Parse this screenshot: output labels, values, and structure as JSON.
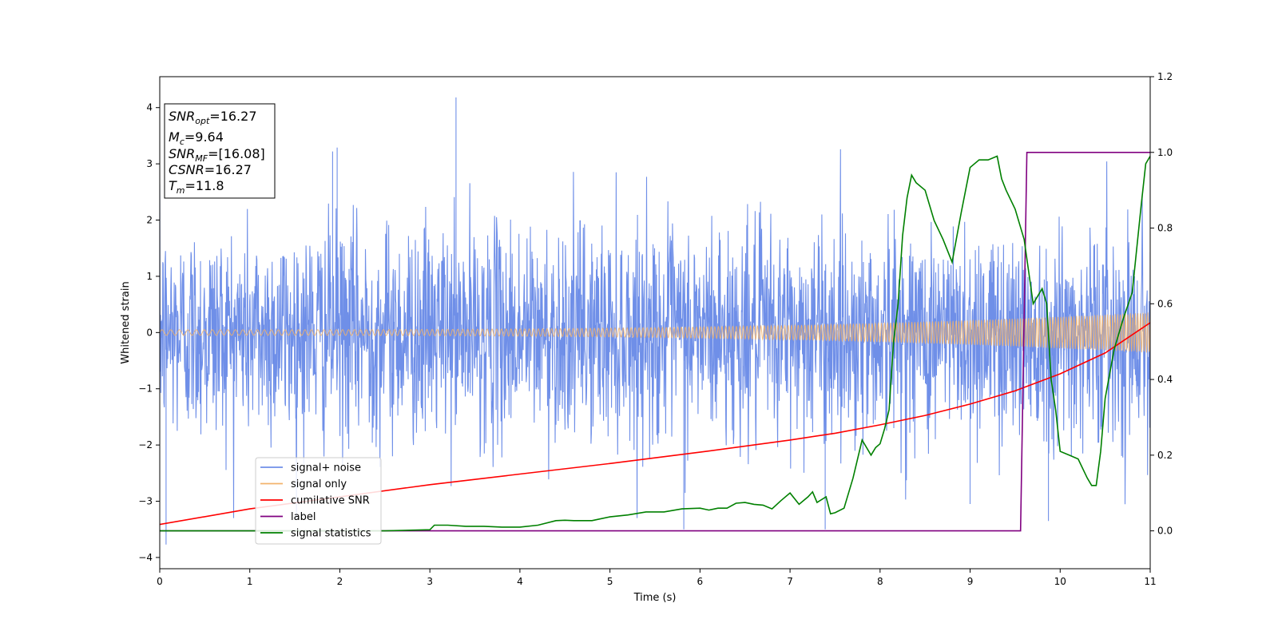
{
  "chart_data": {
    "type": "line",
    "xlabel": "Time (s)",
    "ylabel": "Whitened strain",
    "xlim": [
      0,
      11
    ],
    "ylim": [
      -4.2,
      4.55
    ],
    "y2lim": [
      -0.1,
      1.2
    ],
    "x_ticks": [
      0,
      1,
      2,
      3,
      4,
      5,
      6,
      7,
      8,
      9,
      10,
      11
    ],
    "x_tick_labels": [
      "0",
      "1",
      "2",
      "3",
      "4",
      "5",
      "6",
      "7",
      "8",
      "9",
      "10",
      "11"
    ],
    "y_ticks": [
      -4,
      -3,
      -2,
      -1,
      0,
      1,
      2,
      3,
      4
    ],
    "y_tick_labels": [
      "−4",
      "−3",
      "−2",
      "−1",
      "0",
      "1",
      "2",
      "3",
      "4"
    ],
    "y2_ticks": [
      0.0,
      0.2,
      0.4,
      0.6,
      0.8,
      1.0,
      1.2
    ],
    "y2_tick_labels": [
      "0.0",
      "0.2",
      "0.4",
      "0.6",
      "0.8",
      "1.0",
      "1.2"
    ],
    "grid": false,
    "legend_position": "lower-left",
    "colors": {
      "noise": "#6f8fe8",
      "signal": "#f2b36b",
      "snr": "#ff0000",
      "label": "#800080",
      "stat": "#008000"
    },
    "annotation": {
      "snr_opt": {
        "base": "SNR",
        "sub": "opt",
        "value": "=16.27"
      },
      "mc": {
        "base": "M",
        "sub": "c",
        "value": "=9.64"
      },
      "snr_mf": {
        "base": "SNR",
        "sub": "MF",
        "value": "=[16.08]"
      },
      "csnr": {
        "base": "CSNR",
        "value": "=16.27"
      },
      "tm": {
        "base": "T",
        "sub": "m",
        "value": "=11.8"
      }
    },
    "legend": [
      {
        "key": "noise",
        "label": "signal+ noise"
      },
      {
        "key": "signal",
        "label": "signal only"
      },
      {
        "key": "snr",
        "label": "cumilative SNR"
      },
      {
        "key": "label",
        "label": "label"
      },
      {
        "key": "stat",
        "label": "signal statistics"
      }
    ],
    "series": [
      {
        "key": "noise",
        "axis": "left",
        "description_visible": "dense noisy waveform",
        "envelope_upper": 2.6,
        "envelope_lower": -2.6,
        "peaks": [
          [
            0.07,
            -3.77
          ],
          [
            1.92,
            3.22
          ],
          [
            1.97,
            3.29
          ],
          [
            3.29,
            4.18
          ],
          [
            9.0,
            -3.05
          ],
          [
            9.87,
            -3.35
          ],
          [
            5.82,
            -3.5
          ],
          [
            7.39,
            -3.5
          ]
        ]
      },
      {
        "key": "signal",
        "axis": "left",
        "amp_start": 0.05,
        "amp_end": 0.36
      },
      {
        "key": "snr",
        "axis": "right",
        "x": [
          0,
          1,
          2,
          3,
          4,
          5,
          6,
          7,
          7.5,
          8,
          8.5,
          9,
          9.5,
          10,
          10.5,
          11
        ],
        "y": [
          0.017,
          0.058,
          0.09,
          0.122,
          0.15,
          0.178,
          0.208,
          0.24,
          0.258,
          0.28,
          0.305,
          0.335,
          0.37,
          0.415,
          0.47,
          0.55
        ]
      },
      {
        "key": "label",
        "axis": "right",
        "x": [
          0,
          9.56,
          9.63,
          11
        ],
        "y": [
          0,
          0,
          1,
          1
        ]
      },
      {
        "key": "stat",
        "axis": "right",
        "x": [
          0,
          1,
          2,
          2.5,
          3.0,
          3.05,
          3.2,
          3.4,
          3.6,
          3.8,
          4.0,
          4.2,
          4.4,
          4.5,
          4.6,
          4.8,
          5.0,
          5.2,
          5.4,
          5.6,
          5.8,
          6.0,
          6.1,
          6.2,
          6.3,
          6.4,
          6.5,
          6.6,
          6.7,
          6.8,
          6.9,
          7.0,
          7.1,
          7.2,
          7.25,
          7.3,
          7.4,
          7.45,
          7.5,
          7.6,
          7.7,
          7.8,
          7.9,
          7.95,
          8.0,
          8.05,
          8.1,
          8.15,
          8.2,
          8.25,
          8.3,
          8.35,
          8.4,
          8.5,
          8.6,
          8.7,
          8.8,
          8.9,
          9.0,
          9.1,
          9.2,
          9.3,
          9.35,
          9.4,
          9.5,
          9.6,
          9.7,
          9.75,
          9.8,
          9.85,
          9.9,
          9.95,
          10.0,
          10.1,
          10.2,
          10.3,
          10.35,
          10.4,
          10.45,
          10.5,
          10.6,
          10.7,
          10.8,
          10.9,
          10.95,
          11.0
        ],
        "y": [
          0.0,
          0.0,
          0.0,
          0.0,
          0.003,
          0.015,
          0.015,
          0.012,
          0.012,
          0.01,
          0.01,
          0.015,
          0.027,
          0.028,
          0.027,
          0.027,
          0.037,
          0.042,
          0.05,
          0.05,
          0.058,
          0.06,
          0.055,
          0.06,
          0.06,
          0.073,
          0.075,
          0.07,
          0.068,
          0.058,
          0.08,
          0.1,
          0.07,
          0.09,
          0.103,
          0.075,
          0.09,
          0.045,
          0.048,
          0.06,
          0.14,
          0.24,
          0.2,
          0.22,
          0.23,
          0.27,
          0.32,
          0.5,
          0.6,
          0.78,
          0.88,
          0.94,
          0.92,
          0.9,
          0.82,
          0.77,
          0.71,
          0.84,
          0.96,
          0.98,
          0.98,
          0.99,
          0.93,
          0.9,
          0.85,
          0.77,
          0.6,
          0.62,
          0.64,
          0.6,
          0.4,
          0.32,
          0.21,
          0.2,
          0.19,
          0.14,
          0.12,
          0.12,
          0.21,
          0.35,
          0.48,
          0.56,
          0.63,
          0.86,
          0.97,
          0.99
        ]
      }
    ]
  }
}
